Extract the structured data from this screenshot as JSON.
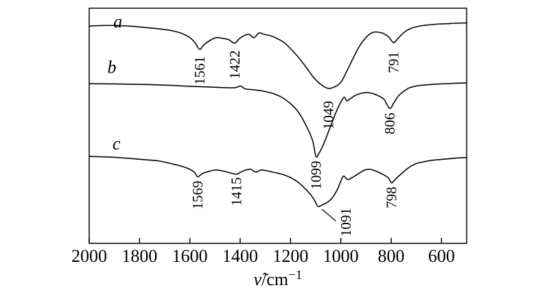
{
  "figure": {
    "background": "#ffffff",
    "line_color": "#000000"
  },
  "chart_data": {
    "type": "line",
    "title": "",
    "description": "FTIR transmittance spectra, three stacked curves a, b, c; x axis reversed wavenumber",
    "xlabel": {
      "symbol": "ν̃",
      "rest": "/cm",
      "exponent": "−1"
    },
    "x_axis": {
      "left": 2000,
      "right": 500,
      "tick_values": [
        2000,
        1800,
        1600,
        1400,
        1200,
        1000,
        800,
        600
      ]
    },
    "y_axis": {
      "label": "",
      "units": "arbitrary transmittance (0 = top, 100 = bottom of frame)"
    },
    "series": [
      {
        "name": "a",
        "label_pos": {
          "x": 1886,
          "y": 8.2
        },
        "peak_labels": [
          {
            "text": "1561",
            "x": 1561,
            "y": 26.5
          },
          {
            "text": "1422",
            "x": 1422,
            "y": 24.0
          },
          {
            "text": "1049",
            "x": 1049,
            "y": 45.5
          },
          {
            "text": "791",
            "x": 791,
            "y": 23.0
          }
        ],
        "points": [
          [
            2000,
            7.6
          ],
          [
            1920,
            7.3
          ],
          [
            1840,
            7.6
          ],
          [
            1780,
            8.2
          ],
          [
            1720,
            8.8
          ],
          [
            1670,
            9.6
          ],
          [
            1630,
            10.8
          ],
          [
            1600,
            12.5
          ],
          [
            1580,
            14.6
          ],
          [
            1561,
            17.5
          ],
          [
            1545,
            15.6
          ],
          [
            1520,
            13.7
          ],
          [
            1495,
            12.5
          ],
          [
            1470,
            12.8
          ],
          [
            1445,
            13.4
          ],
          [
            1422,
            14.9
          ],
          [
            1405,
            13.1
          ],
          [
            1385,
            11.7
          ],
          [
            1365,
            11.1
          ],
          [
            1345,
            12.5
          ],
          [
            1325,
            10.5
          ],
          [
            1305,
            11.1
          ],
          [
            1280,
            11.7
          ],
          [
            1255,
            12.8
          ],
          [
            1225,
            14.6
          ],
          [
            1200,
            17.2
          ],
          [
            1170,
            20.7
          ],
          [
            1140,
            24.8
          ],
          [
            1110,
            29.2
          ],
          [
            1080,
            32.4
          ],
          [
            1049,
            34.1
          ],
          [
            1020,
            33.2
          ],
          [
            1000,
            31.5
          ],
          [
            985,
            28.6
          ],
          [
            970,
            25.4
          ],
          [
            950,
            21.0
          ],
          [
            930,
            16.9
          ],
          [
            910,
            13.7
          ],
          [
            890,
            11.4
          ],
          [
            870,
            10.2
          ],
          [
            850,
            10.2
          ],
          [
            830,
            10.8
          ],
          [
            810,
            12.2
          ],
          [
            791,
            14.6
          ],
          [
            775,
            13.1
          ],
          [
            760,
            11.4
          ],
          [
            740,
            9.6
          ],
          [
            720,
            8.5
          ],
          [
            700,
            7.9
          ],
          [
            670,
            7.3
          ],
          [
            640,
            7.0
          ],
          [
            610,
            6.7
          ],
          [
            580,
            6.6
          ],
          [
            550,
            6.4
          ],
          [
            520,
            6.3
          ],
          [
            500,
            6.3
          ]
        ]
      },
      {
        "name": "b",
        "label_pos": {
          "x": 1910,
          "y": 27.5
        },
        "peak_labels": [
          {
            "text": "1099",
            "x": 1099,
            "y": 71.0
          },
          {
            "text": "806",
            "x": 806,
            "y": 49.0
          }
        ],
        "points": [
          [
            2000,
            32.1
          ],
          [
            1900,
            32.2
          ],
          [
            1800,
            32.4
          ],
          [
            1700,
            32.7
          ],
          [
            1600,
            33.2
          ],
          [
            1520,
            33.5
          ],
          [
            1460,
            33.8
          ],
          [
            1420,
            33.8
          ],
          [
            1398,
            33.1
          ],
          [
            1380,
            34.3
          ],
          [
            1345,
            34.7
          ],
          [
            1305,
            35.3
          ],
          [
            1265,
            36.4
          ],
          [
            1230,
            38.2
          ],
          [
            1198,
            40.8
          ],
          [
            1168,
            44.3
          ],
          [
            1138,
            49.9
          ],
          [
            1112,
            56.3
          ],
          [
            1099,
            63.0
          ],
          [
            1086,
            61.5
          ],
          [
            1068,
            57.7
          ],
          [
            1048,
            52.2
          ],
          [
            1028,
            46.6
          ],
          [
            1010,
            42.0
          ],
          [
            996,
            39.1
          ],
          [
            986,
            37.9
          ],
          [
            976,
            39.4
          ],
          [
            963,
            38.5
          ],
          [
            946,
            37.3
          ],
          [
            926,
            36.4
          ],
          [
            902,
            35.9
          ],
          [
            876,
            36.2
          ],
          [
            850,
            37.3
          ],
          [
            828,
            38.8
          ],
          [
            806,
            42.6
          ],
          [
            789,
            40.2
          ],
          [
            771,
            37.3
          ],
          [
            750,
            35.3
          ],
          [
            726,
            33.8
          ],
          [
            696,
            33.0
          ],
          [
            662,
            32.6
          ],
          [
            622,
            32.3
          ],
          [
            582,
            32.1
          ],
          [
            542,
            31.9
          ],
          [
            500,
            31.8
          ]
        ]
      },
      {
        "name": "c",
        "label_pos": {
          "x": 1892,
          "y": 60.0
        },
        "peak_labels": [
          {
            "text": "1569",
            "x": 1569,
            "y": 79.5
          },
          {
            "text": "1415",
            "x": 1415,
            "y": 78.0
          },
          {
            "text": "1091",
            "x": 980,
            "y": 91.0
          },
          {
            "text": "798",
            "x": 798,
            "y": 80.5
          }
        ],
        "points": [
          [
            2000,
            63.0
          ],
          [
            1920,
            63.3
          ],
          [
            1850,
            63.8
          ],
          [
            1780,
            64.4
          ],
          [
            1720,
            65.0
          ],
          [
            1670,
            66.2
          ],
          [
            1630,
            67.3
          ],
          [
            1600,
            68.5
          ],
          [
            1580,
            70.0
          ],
          [
            1569,
            71.7
          ],
          [
            1550,
            70.3
          ],
          [
            1525,
            69.4
          ],
          [
            1500,
            68.8
          ],
          [
            1475,
            69.1
          ],
          [
            1450,
            69.7
          ],
          [
            1430,
            70.3
          ],
          [
            1415,
            70.6
          ],
          [
            1398,
            69.7
          ],
          [
            1378,
            68.8
          ],
          [
            1358,
            68.5
          ],
          [
            1338,
            69.7
          ],
          [
            1318,
            68.8
          ],
          [
            1295,
            69.1
          ],
          [
            1270,
            69.7
          ],
          [
            1245,
            70.3
          ],
          [
            1220,
            71.1
          ],
          [
            1195,
            72.3
          ],
          [
            1170,
            74.0
          ],
          [
            1145,
            76.4
          ],
          [
            1120,
            79.3
          ],
          [
            1105,
            81.7
          ],
          [
            1091,
            84.3
          ],
          [
            1075,
            83.7
          ],
          [
            1055,
            82.6
          ],
          [
            1035,
            80.8
          ],
          [
            1015,
            77.3
          ],
          [
            1000,
            73.5
          ],
          [
            990,
            71.4
          ],
          [
            982,
            72.0
          ],
          [
            972,
            72.9
          ],
          [
            960,
            72.3
          ],
          [
            945,
            71.4
          ],
          [
            925,
            70.0
          ],
          [
            905,
            68.8
          ],
          [
            885,
            68.5
          ],
          [
            865,
            69.1
          ],
          [
            845,
            70.0
          ],
          [
            825,
            71.1
          ],
          [
            810,
            72.3
          ],
          [
            798,
            74.3
          ],
          [
            785,
            72.9
          ],
          [
            770,
            71.4
          ],
          [
            752,
            69.7
          ],
          [
            735,
            68.2
          ],
          [
            715,
            66.8
          ],
          [
            695,
            65.9
          ],
          [
            670,
            65.3
          ],
          [
            640,
            64.7
          ],
          [
            610,
            64.4
          ],
          [
            580,
            64.1
          ],
          [
            550,
            63.8
          ],
          [
            520,
            63.6
          ],
          [
            500,
            63.6
          ]
        ]
      }
    ],
    "leader_line": {
      "label": "1091",
      "from": [
        1075,
        85.5
      ],
      "to": [
        1020,
        90.5
      ]
    }
  }
}
